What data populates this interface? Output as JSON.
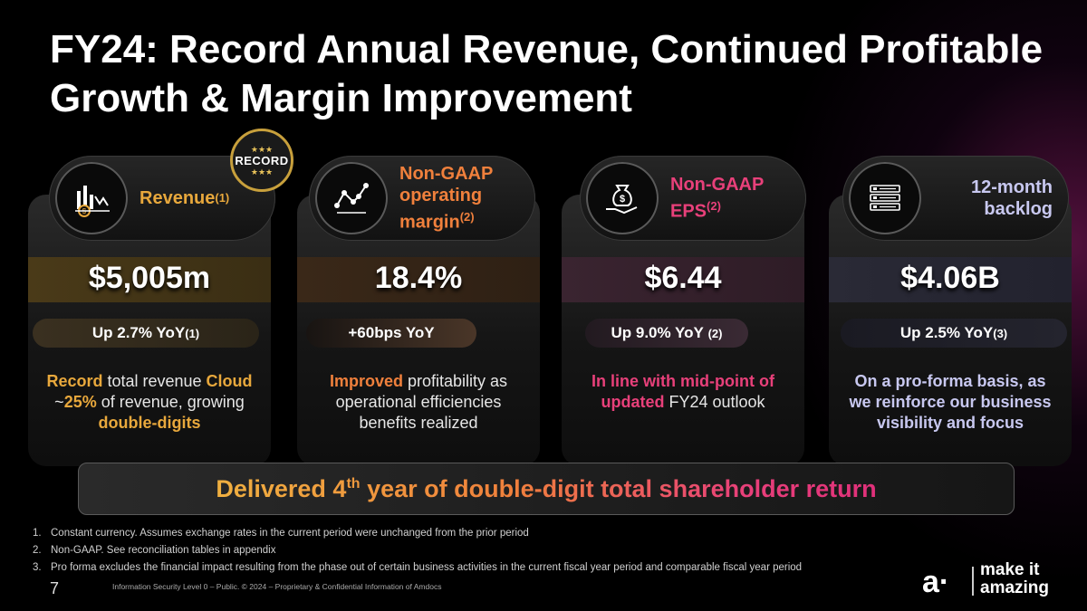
{
  "title": "FY24: Record Annual Revenue, Continued Profitable Growth & Margin Improvement",
  "badge": {
    "stars": "★★★",
    "text": "RECORD"
  },
  "cards": [
    {
      "label": "Revenue",
      "label_sup": "(1)",
      "icon": "revenue-chart-icon",
      "metric": "$5,005m",
      "sub_main": "Up 2.7% YoY",
      "sub_sup": "(1)",
      "desc_1a": "Record",
      "desc_1b": " total revenue ",
      "desc_1c": "Cloud",
      "desc_2a": "~",
      "desc_2b": "25%",
      "desc_2c": " of revenue, growing",
      "desc_3": "double-digits"
    },
    {
      "label_l1": "Non-GAAP",
      "label_l2": "operating",
      "label_l3": "margin",
      "label_sup": "(2)",
      "icon": "line-trend-icon",
      "metric": "18.4%",
      "sub_main": "+60bps YoY",
      "desc_1a": "Improved",
      "desc_1b": " profitability as",
      "desc_2": "operational efficiencies",
      "desc_3": "benefits realized"
    },
    {
      "label_l1": "Non-GAAP",
      "label_l2": "EPS",
      "label_sup": "(2)",
      "icon": "money-bag-hand-icon",
      "metric": "$6.44",
      "sub_main": "Up 9.0% YoY",
      "sub_sup": "(2)",
      "desc_1": "In line with mid-point of",
      "desc_2a": "updated",
      "desc_2b": " FY24 outlook"
    },
    {
      "label_l1": "12-month",
      "label_l2": "backlog",
      "icon": "list-backlog-icon",
      "metric": "$4.06B",
      "sub_main": "Up 2.5% YoY",
      "sub_sup": "(3)",
      "desc_1": "On a pro-forma basis, as",
      "desc_2": "we reinforce our business",
      "desc_3": "visibility and focus"
    }
  ],
  "banner": {
    "pre": "Delivered 4",
    "sup": "th",
    "post": " year of double-digit total shareholder return"
  },
  "footnotes": [
    {
      "num": "1.",
      "text": "Constant currency. Assumes exchange rates in the current period were unchanged from the prior period"
    },
    {
      "num": "2.",
      "text": "Non-GAAP. See reconciliation tables in appendix"
    },
    {
      "num": "3.",
      "text": "Pro forma excludes the financial impact resulting from the phase out of certain business activities in the current fiscal year period and comparable fiscal year period"
    }
  ],
  "footer": {
    "page": "7",
    "text": "Information Security Level 0 – Public. © 2024 – Proprietary & Confidential Information of Amdocs"
  },
  "logo": {
    "mark": "a·",
    "line1": "make it",
    "line2": "amazing"
  },
  "colors": {
    "gold": "#e8a83c",
    "orange": "#f0803c",
    "pink": "#e8407a",
    "lavender": "#c8c8f0"
  }
}
